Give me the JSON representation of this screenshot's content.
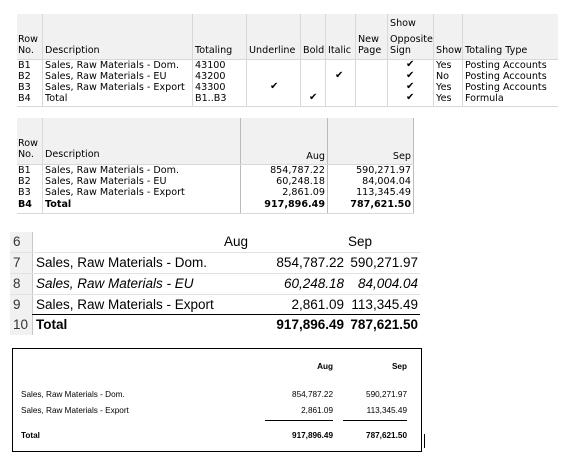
{
  "row_definition": {
    "headers": {
      "row_no_1": "Row",
      "row_no_2": "No.",
      "description": "Description",
      "totaling": "Totaling",
      "underline": "Underline",
      "bold": "Bold",
      "italic": "Italic",
      "new_page_1": "New",
      "new_page_2": "Page",
      "show_opposite_1": "Show",
      "show_opposite_2": "Opposite",
      "show_opposite_3": "Sign",
      "show": "Show",
      "totaling_type": "Totaling Type"
    },
    "rows": [
      {
        "row_no": "B1",
        "description": "Sales, Raw Materials - Dom.",
        "totaling": "43100",
        "underline": "",
        "bold": "",
        "italic": "",
        "new_page": "",
        "opposite": "✔",
        "show": "Yes",
        "type": "Posting Accounts"
      },
      {
        "row_no": "B2",
        "description": "Sales, Raw Materials - EU",
        "totaling": "43200",
        "underline": "",
        "bold": "",
        "italic": "✔",
        "new_page": "",
        "opposite": "✔",
        "show": "No",
        "type": "Posting Accounts"
      },
      {
        "row_no": "B3",
        "description": "Sales, Raw Materials - Export",
        "totaling": "43300",
        "underline": "✔",
        "bold": "",
        "italic": "",
        "new_page": "",
        "opposite": "✔",
        "show": "Yes",
        "type": "Posting Accounts"
      },
      {
        "row_no": "B4",
        "description": "Total",
        "totaling": "B1..B3",
        "underline": "",
        "bold": "✔",
        "italic": "",
        "new_page": "",
        "opposite": "✔",
        "show": "Yes",
        "type": "Formula"
      }
    ]
  },
  "overview": {
    "headers": {
      "row_no_1": "Row",
      "row_no_2": "No.",
      "description": "Description",
      "aug": "Aug",
      "sep": "Sep"
    },
    "rows": [
      {
        "row_no": "B1",
        "description": "Sales, Raw Materials - Dom.",
        "aug": "854,787.22",
        "sep": "590,271.97"
      },
      {
        "row_no": "B2",
        "description": "Sales, Raw Materials - EU",
        "aug": "60,248.18",
        "sep": "84,004.04"
      },
      {
        "row_no": "B3",
        "description": "Sales, Raw Materials - Export",
        "aug": "2,861.09",
        "sep": "113,345.49"
      },
      {
        "row_no": "B4",
        "description": "Total",
        "aug": "917,896.49",
        "sep": "787,621.50"
      }
    ]
  },
  "spreadsheet": {
    "header": {
      "row": "6",
      "aug": "Aug",
      "sep": "Sep"
    },
    "rows": [
      {
        "row": "7",
        "description": "Sales, Raw Materials - Dom.",
        "aug": "854,787.22",
        "sep": "590,271.97"
      },
      {
        "row": "8",
        "description": "Sales, Raw Materials - EU",
        "aug": "60,248.18",
        "sep": "84,004.04"
      },
      {
        "row": "9",
        "description": "Sales, Raw Materials - Export",
        "aug": "2,861.09",
        "sep": "113,345.49"
      },
      {
        "row": "10",
        "description": "Total",
        "aug": "917,896.49",
        "sep": "787,621.50"
      }
    ]
  },
  "report": {
    "headers": {
      "aug": "Aug",
      "sep": "Sep"
    },
    "rows": [
      {
        "description": "Sales, Raw Materials - Dom.",
        "aug": "854,787.22",
        "sep": "590,271.97"
      },
      {
        "description": "Sales, Raw Materials - Export",
        "aug": "2,861.09",
        "sep": "113,345.49"
      }
    ],
    "total": {
      "description": "Total",
      "aug": "917,896.49",
      "sep": "787,621.50"
    }
  }
}
